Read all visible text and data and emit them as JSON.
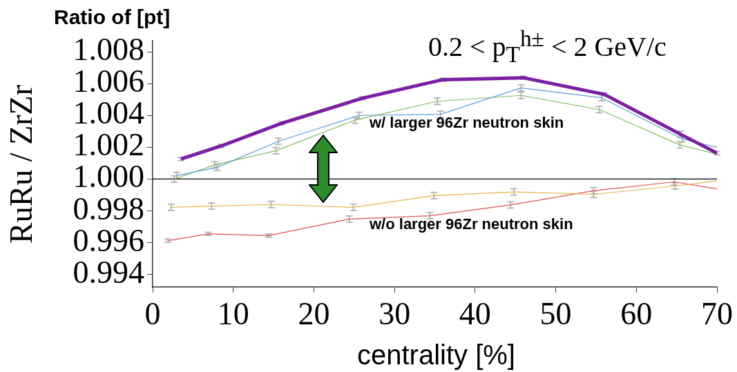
{
  "chart_data": {
    "type": "line",
    "marker": "none",
    "title": "0.2 < p$_{T}$$^{h±}$ < 2 GeV/c",
    "xlabel": "centrality [%]",
    "ylabel": "RuRu / ZrZr",
    "annotations": [
      "Ratio of [pt]",
      "w/ larger 96Zr neutron skin",
      "w/o larger 96Zr neutron skin"
    ],
    "xlim": [
      0,
      70
    ],
    "xticks": [
      0,
      10,
      20,
      30,
      40,
      50,
      60,
      70
    ],
    "ylim": [
      0.9932,
      1.0087
    ],
    "yticks": [
      0.994,
      0.996,
      0.998,
      {
        "value": 1,
        "label": "1.000"
      },
      1.002,
      1.004,
      1.006,
      1.008
    ],
    "ref_lines": [
      {
        "axis": "y",
        "value": 1,
        "color": "#000000"
      }
    ],
    "series": [
      {
        "color": "#7b1fa2",
        "x": [
          3.5,
          8.5,
          16,
          26,
          36,
          46,
          56,
          65.5,
          70
        ],
        "values": [
          1.00126,
          1.00208,
          1.00351,
          1.00508,
          1.00625,
          1.00637,
          1.00533,
          1.00281,
          1.00163
        ],
        "errors": [
          0.0001,
          0.0001,
          0.0001,
          0.0001,
          0.0001,
          0.0001,
          0.0001,
          0.0002,
          0.0001
        ]
      },
      {
        "color": "#5b9bd5",
        "x": [
          3,
          8,
          15.6,
          25.6,
          35.7,
          45.7,
          55.7,
          65.7,
          70
        ],
        "values": [
          1.00022,
          1.00074,
          1.00237,
          1.004,
          1.00407,
          1.00573,
          1.00511,
          1.00252,
          1.002
        ],
        "errors": [
          0.0002,
          0.0002,
          0.0002,
          0.0002,
          0.0002,
          0.0002,
          0.0002,
          0.0002,
          null
        ]
      },
      {
        "color": "#7fbf5f",
        "x": [
          2.7,
          7.7,
          15.3,
          25.1,
          35.3,
          45.7,
          55.4,
          65.4,
          70
        ],
        "values": [
          1,
          1.00089,
          1.00178,
          1.0037,
          1.00489,
          1.00526,
          1.00437,
          1.00215,
          1.00156
        ],
        "errors": [
          0.0002,
          0.0002,
          0.0002,
          0.0002,
          0.0002,
          0.0002,
          0.0002,
          0.0002,
          null
        ]
      },
      {
        "color": "#e8b04b",
        "x": [
          2.3,
          7.3,
          14.7,
          24.9,
          34.9,
          44.8,
          54.7,
          64.8,
          70
        ],
        "values": [
          0.99822,
          0.9983,
          0.9984,
          0.99822,
          0.99896,
          0.99919,
          0.99904,
          0.99956,
          0.99988
        ],
        "errors": [
          0.0002,
          0.0002,
          0.0002,
          0.0002,
          0.0002,
          0.0002,
          0.0002,
          0.0002,
          null
        ]
      },
      {
        "color": "#e05050",
        "x": [
          1.9,
          6.9,
          14.4,
          24.4,
          34.4,
          44.4,
          54.7,
          64.7,
          70
        ],
        "values": [
          0.99612,
          0.99655,
          0.99644,
          0.99748,
          0.99769,
          0.99837,
          0.99926,
          0.99982,
          0.99938
        ],
        "errors": [
          0.0001,
          0.0001,
          0.0001,
          0.0002,
          0.0002,
          0.0002,
          0.0002,
          0.0002,
          null
        ]
      }
    ]
  }
}
